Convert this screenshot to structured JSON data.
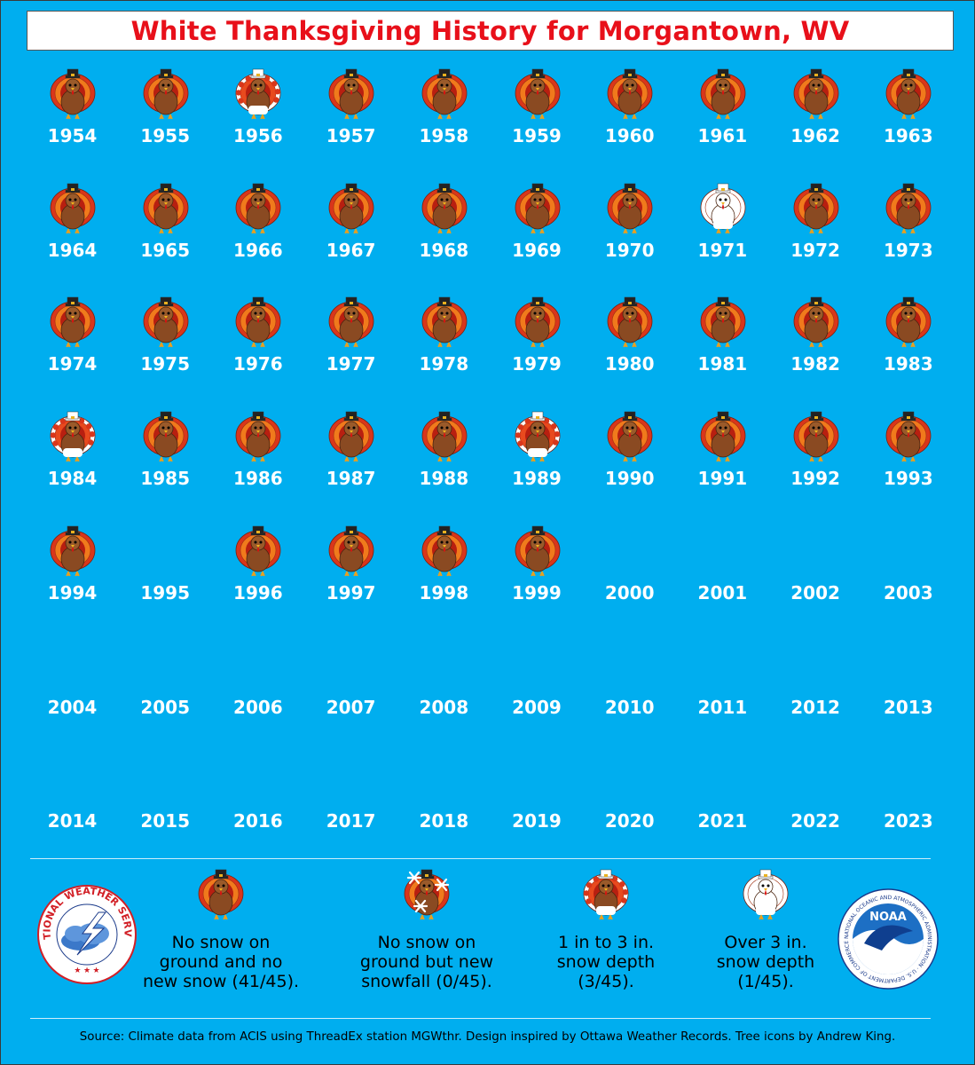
{
  "title": "White Thanksgiving History for Morgantown, WV",
  "colors": {
    "background": "#00aeef",
    "title_text": "#e8101a",
    "year_text": "#ffffff"
  },
  "years": [
    {
      "year": "1954",
      "icon": "turkey-no-snow"
    },
    {
      "year": "1955",
      "icon": "turkey-no-snow"
    },
    {
      "year": "1956",
      "icon": "turkey-1-3-in"
    },
    {
      "year": "1957",
      "icon": "turkey-no-snow"
    },
    {
      "year": "1958",
      "icon": "turkey-no-snow"
    },
    {
      "year": "1959",
      "icon": "turkey-no-snow"
    },
    {
      "year": "1960",
      "icon": "turkey-no-snow"
    },
    {
      "year": "1961",
      "icon": "turkey-no-snow"
    },
    {
      "year": "1962",
      "icon": "turkey-no-snow"
    },
    {
      "year": "1963",
      "icon": "turkey-no-snow"
    },
    {
      "year": "1964",
      "icon": "turkey-no-snow"
    },
    {
      "year": "1965",
      "icon": "turkey-no-snow"
    },
    {
      "year": "1966",
      "icon": "turkey-no-snow"
    },
    {
      "year": "1967",
      "icon": "turkey-no-snow"
    },
    {
      "year": "1968",
      "icon": "turkey-no-snow"
    },
    {
      "year": "1969",
      "icon": "turkey-no-snow"
    },
    {
      "year": "1970",
      "icon": "turkey-no-snow"
    },
    {
      "year": "1971",
      "icon": "turkey-over-3-in"
    },
    {
      "year": "1972",
      "icon": "turkey-no-snow"
    },
    {
      "year": "1973",
      "icon": "turkey-no-snow"
    },
    {
      "year": "1974",
      "icon": "turkey-no-snow"
    },
    {
      "year": "1975",
      "icon": "turkey-no-snow"
    },
    {
      "year": "1976",
      "icon": "turkey-no-snow"
    },
    {
      "year": "1977",
      "icon": "turkey-no-snow"
    },
    {
      "year": "1978",
      "icon": "turkey-no-snow"
    },
    {
      "year": "1979",
      "icon": "turkey-no-snow"
    },
    {
      "year": "1980",
      "icon": "turkey-no-snow"
    },
    {
      "year": "1981",
      "icon": "turkey-no-snow"
    },
    {
      "year": "1982",
      "icon": "turkey-no-snow"
    },
    {
      "year": "1983",
      "icon": "turkey-no-snow"
    },
    {
      "year": "1984",
      "icon": "turkey-1-3-in"
    },
    {
      "year": "1985",
      "icon": "turkey-no-snow"
    },
    {
      "year": "1986",
      "icon": "turkey-no-snow"
    },
    {
      "year": "1987",
      "icon": "turkey-no-snow"
    },
    {
      "year": "1988",
      "icon": "turkey-no-snow"
    },
    {
      "year": "1989",
      "icon": "turkey-1-3-in"
    },
    {
      "year": "1990",
      "icon": "turkey-no-snow"
    },
    {
      "year": "1991",
      "icon": "turkey-no-snow"
    },
    {
      "year": "1992",
      "icon": "turkey-no-snow"
    },
    {
      "year": "1993",
      "icon": "turkey-no-snow"
    },
    {
      "year": "1994",
      "icon": "turkey-no-snow"
    },
    {
      "year": "1995",
      "icon": ""
    },
    {
      "year": "1996",
      "icon": "turkey-no-snow"
    },
    {
      "year": "1997",
      "icon": "turkey-no-snow"
    },
    {
      "year": "1998",
      "icon": "turkey-no-snow"
    },
    {
      "year": "1999",
      "icon": "turkey-no-snow"
    },
    {
      "year": "2000",
      "icon": ""
    },
    {
      "year": "2001",
      "icon": ""
    },
    {
      "year": "2002",
      "icon": ""
    },
    {
      "year": "2003",
      "icon": ""
    },
    {
      "year": "2004",
      "icon": ""
    },
    {
      "year": "2005",
      "icon": ""
    },
    {
      "year": "2006",
      "icon": ""
    },
    {
      "year": "2007",
      "icon": ""
    },
    {
      "year": "2008",
      "icon": ""
    },
    {
      "year": "2009",
      "icon": ""
    },
    {
      "year": "2010",
      "icon": ""
    },
    {
      "year": "2011",
      "icon": ""
    },
    {
      "year": "2012",
      "icon": ""
    },
    {
      "year": "2013",
      "icon": ""
    },
    {
      "year": "2014",
      "icon": ""
    },
    {
      "year": "2015",
      "icon": ""
    },
    {
      "year": "2016",
      "icon": ""
    },
    {
      "year": "2017",
      "icon": ""
    },
    {
      "year": "2018",
      "icon": ""
    },
    {
      "year": "2019",
      "icon": ""
    },
    {
      "year": "2020",
      "icon": ""
    },
    {
      "year": "2021",
      "icon": ""
    },
    {
      "year": "2022",
      "icon": ""
    },
    {
      "year": "2023",
      "icon": ""
    }
  ],
  "legend": [
    {
      "icon": "turkey-no-snow",
      "lines": [
        "No snow on",
        "ground and no",
        "new snow (41/45)."
      ]
    },
    {
      "icon": "turkey-new-snowfall",
      "lines": [
        "No snow on",
        "ground but new",
        "snowfall (0/45)."
      ]
    },
    {
      "icon": "turkey-1-3-in",
      "lines": [
        "1 in to 3 in.",
        "snow depth",
        "(3/45)."
      ]
    },
    {
      "icon": "turkey-over-3-in",
      "lines": [
        "Over 3 in.",
        "snow depth",
        "(1/45)."
      ]
    }
  ],
  "logos": {
    "nws": {
      "icon": "nws-logo",
      "text": "NATIONAL WEATHER SERVICE"
    },
    "noaa": {
      "icon": "noaa-logo",
      "text": "NOAA",
      "ring_text": "NATIONAL OCEANIC AND ATMOSPHERIC ADMINISTRATION · U.S. DEPARTMENT OF COMMERCE"
    }
  },
  "source": "Source: Climate data from ACIS using ThreadEx station MGWthr. Design inspired by Ottawa Weather Records. Tree icons by Andrew King."
}
